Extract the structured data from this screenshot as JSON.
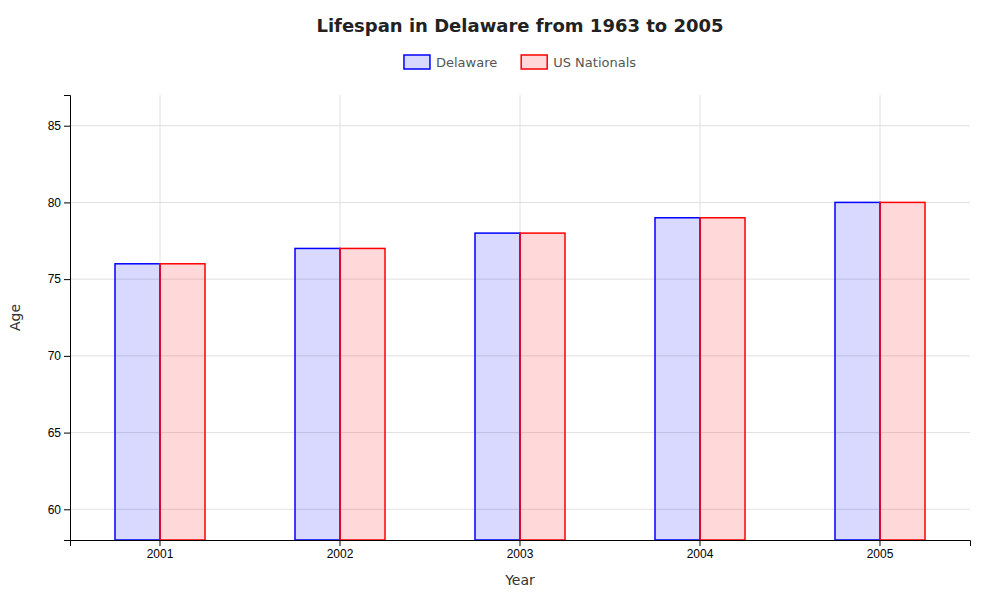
{
  "chart_data": {
    "type": "bar",
    "title": "Lifespan in Delaware from 1963 to 2005",
    "x_label": "Year",
    "y_label": "Age",
    "categories": [
      "2001",
      "2002",
      "2003",
      "2004",
      "2005"
    ],
    "series": [
      {
        "name": "Delaware",
        "color": "#0000ff",
        "values": [
          76,
          77,
          78,
          79,
          80
        ]
      },
      {
        "name": "US Nationals",
        "color": "#ff0000",
        "values": [
          76,
          77,
          78,
          79,
          80
        ]
      }
    ],
    "ylim": [
      58,
      87
    ],
    "yticks": [
      60,
      65,
      70,
      75,
      80,
      85
    ],
    "grid": true,
    "legend": "top"
  }
}
